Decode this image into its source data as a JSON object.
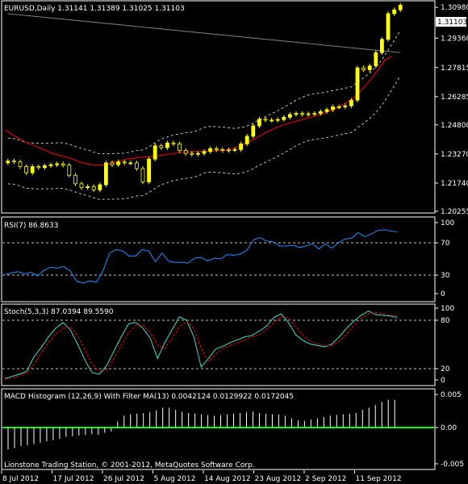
{
  "main": {
    "header": "EURUSD,Daily  1.31141 1.31389 1.31025 1.31103",
    "price_labels": [
      "1.30980",
      "1.29360",
      "1.27815",
      "1.26285",
      "1.24800",
      "1.23270",
      "1.21740",
      "1.20255"
    ],
    "current_price": "1.31103"
  },
  "rsi": {
    "header": "RSI(7) 86.8633",
    "levels": [
      "100",
      "70",
      "30",
      "0"
    ]
  },
  "stoch": {
    "header": "Stoch(5,3,3) 87.0394 89.5590",
    "levels": [
      "100",
      "80",
      "20",
      "0"
    ]
  },
  "macd": {
    "header": "MACD Histogram (12,26,9) With Filter MA(13) 0.0042124 0.0129922 0.0172045",
    "levels": [
      "0.005",
      "0.00",
      "-0.005"
    ],
    "footer": "Lionstone Trading Station, © 2001-2012, MetaQuotes Software Corp."
  },
  "dates": [
    "8 Jul 2012",
    "17 Jul 2012",
    "26 Jul 2012",
    "5 Aug 2012",
    "14 Aug 2012",
    "23 Aug 2012",
    "2 Sep 2012",
    "11 Sep 2012"
  ],
  "colors": {
    "background": "#000000",
    "bull_candle": "#ffff00",
    "ma_red": "#ff0000",
    "long_ma": "#808080",
    "bands": "#c0c0c0",
    "rsi_line": "#1e90ff",
    "stoch_main": "#40e0d0",
    "stoch_signal": "#ff0000",
    "histogram": "#ffffff",
    "zero_line": "#00ff00"
  },
  "chart_data": [
    {
      "type": "candlestick",
      "symbol": "EURUSD",
      "timeframe": "Daily",
      "ylim": [
        1.2025,
        1.312
      ],
      "close": [
        1.229,
        1.2285,
        1.226,
        1.2228,
        1.226,
        1.2255,
        1.2265,
        1.227,
        1.2275,
        1.2268,
        1.2215,
        1.217,
        1.215,
        1.2155,
        1.2138,
        1.2165,
        1.228,
        1.227,
        1.2285,
        1.228,
        1.228,
        1.225,
        1.218,
        1.23,
        1.237,
        1.236,
        1.2385,
        1.238,
        1.2345,
        1.233,
        1.2325,
        1.233,
        1.234,
        1.2355,
        1.235,
        1.2345,
        1.2348,
        1.235,
        1.238,
        1.242,
        1.2475,
        1.251,
        1.2505,
        1.2505,
        1.2508,
        1.252,
        1.2535,
        1.254,
        1.2535,
        1.2538,
        1.254,
        1.255,
        1.256,
        1.2575,
        1.2575,
        1.258,
        1.261,
        1.278,
        1.277,
        1.279,
        1.286,
        1.293,
        1.3065,
        1.3085,
        1.311
      ],
      "ma_fast": [
        1.2455,
        1.243,
        1.241,
        1.239,
        1.2375,
        1.236,
        1.2345,
        1.233,
        1.232,
        1.231,
        1.23,
        1.2285,
        1.2275,
        1.227,
        1.2268,
        1.2272,
        1.2285,
        1.229,
        1.23,
        1.2305,
        1.231,
        1.2312,
        1.2315,
        1.232,
        1.2325,
        1.233,
        1.2335,
        1.2338,
        1.234,
        1.234,
        1.2342,
        1.2343,
        1.2345,
        1.235,
        1.236,
        1.2375,
        1.239,
        1.241,
        1.243,
        1.245,
        1.2465,
        1.248,
        1.249,
        1.25,
        1.251,
        1.252,
        1.253,
        1.254,
        1.2555,
        1.257,
        1.259,
        1.261,
        1.264,
        1.268,
        1.272,
        1.277,
        1.282,
        1.284
      ]
    },
    {
      "type": "line",
      "title": "RSI(7) 86.8633",
      "ylim": [
        0,
        100
      ],
      "series": [
        {
          "values": [
            27,
            29,
            31,
            28,
            30,
            25,
            33,
            37,
            36,
            38,
            32,
            17,
            15,
            18,
            16,
            32,
            57,
            62,
            60,
            53,
            53,
            62,
            60,
            45,
            57,
            46,
            44,
            44,
            43,
            50,
            51,
            46,
            50,
            49,
            55,
            54,
            56,
            61,
            76,
            79,
            74,
            73,
            67,
            67,
            68,
            65,
            67,
            70,
            63,
            70,
            64,
            72,
            77,
            78,
            86,
            80,
            84,
            89,
            90,
            88,
            87
          ]
        }
      ]
    },
    {
      "type": "line",
      "title": "Stoch(5,3,3) 87.0394 89.5590",
      "ylim": [
        0,
        100
      ],
      "series": [
        {
          "values": [
            2,
            5,
            8,
            12,
            32,
            45,
            60,
            72,
            80,
            70,
            50,
            28,
            10,
            8,
            20,
            40,
            60,
            78,
            80,
            72,
            58,
            30,
            52,
            70,
            88,
            83,
            60,
            18,
            30,
            43,
            47,
            52,
            56,
            60,
            62,
            68,
            75,
            87,
            92,
            80,
            63,
            55,
            50,
            48,
            46,
            50,
            60,
            72,
            82,
            90,
            96,
            91,
            90,
            89,
            87
          ]
        },
        {
          "values": [
            1,
            3,
            6,
            9,
            22,
            38,
            52,
            64,
            72,
            74,
            62,
            42,
            22,
            12,
            14,
            30,
            48,
            66,
            76,
            76,
            66,
            48,
            44,
            58,
            74,
            82,
            72,
            44,
            26,
            36,
            44,
            48,
            52,
            56,
            60,
            63,
            70,
            80,
            88,
            86,
            74,
            62,
            54,
            50,
            48,
            48,
            54,
            64,
            76,
            86,
            92,
            94,
            92,
            90,
            89
          ]
        }
      ]
    },
    {
      "type": "bar",
      "title": "MACD Histogram (12,26,9) With Filter MA(13) 0.0042124 0.0129922 0.0172045",
      "ylim": [
        -0.005,
        0.005
      ],
      "values": [
        -0.0033,
        -0.0031,
        -0.0028,
        -0.0027,
        -0.0025,
        -0.0023,
        -0.0021,
        -0.0019,
        -0.0017,
        -0.0014,
        -0.0013,
        -0.0012,
        -0.0011,
        -0.001,
        -0.0011,
        -0.0008,
        -0.0006,
        0.0009,
        0.0018,
        0.002,
        0.0021,
        0.0022,
        0.0023,
        0.0026,
        0.003,
        0.003,
        0.0027,
        0.0024,
        0.0022,
        0.0021,
        0.002,
        0.0019,
        0.0018,
        0.0019,
        0.002,
        0.0021,
        0.0022,
        0.0023,
        0.0024,
        0.0022,
        0.0021,
        0.002,
        0.002,
        0.0018,
        0.0014,
        0.0011,
        0.001,
        0.0012,
        0.0014,
        0.0016,
        0.0018,
        0.0019,
        0.002,
        0.0021,
        0.0022,
        0.0027,
        0.003,
        0.0034,
        0.0039,
        0.0042,
        0.0042
      ]
    }
  ]
}
